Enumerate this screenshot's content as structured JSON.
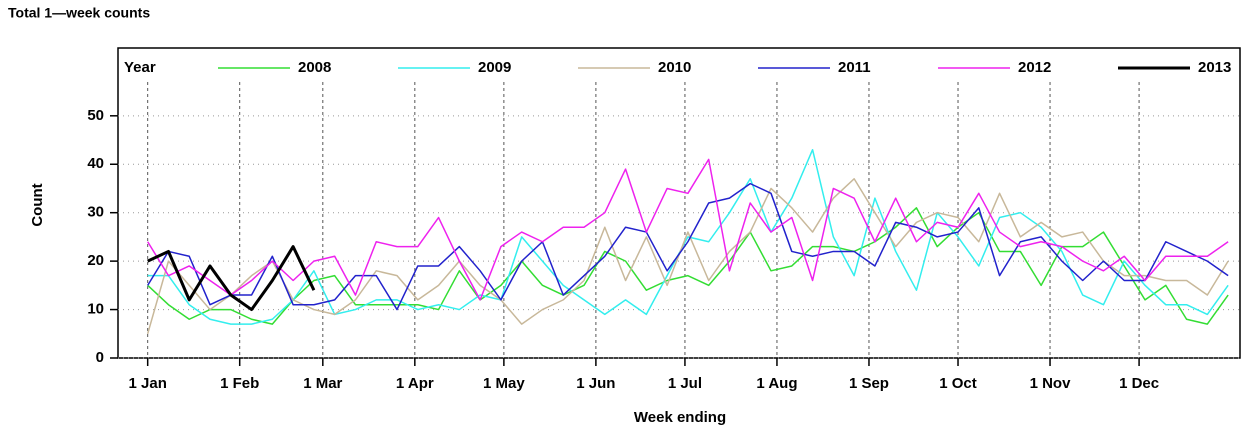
{
  "chart_data": {
    "type": "line",
    "title": "Total 1—week counts",
    "xlabel": "Week ending",
    "ylabel": "Count",
    "legend_title": "Year",
    "legend": "top",
    "grid": true,
    "x": [
      1,
      8,
      15,
      22,
      29,
      36,
      43,
      50,
      57,
      64,
      71,
      78,
      85,
      92,
      99,
      106,
      113,
      120,
      127,
      134,
      141,
      148,
      155,
      162,
      169,
      176,
      183,
      190,
      197,
      204,
      211,
      218,
      225,
      232,
      239,
      246,
      253,
      260,
      267,
      274,
      281,
      288,
      295,
      302,
      309,
      316,
      323,
      330,
      337,
      344,
      351,
      358,
      365
    ],
    "xlim": [
      -9,
      369
    ],
    "xticks": [
      {
        "value": 1,
        "label": "1 Jan"
      },
      {
        "value": 32,
        "label": "1 Feb"
      },
      {
        "value": 60,
        "label": "1 Mar"
      },
      {
        "value": 91,
        "label": "1 Apr"
      },
      {
        "value": 121,
        "label": "1 May"
      },
      {
        "value": 152,
        "label": "1 Jun"
      },
      {
        "value": 182,
        "label": "1 Jul"
      },
      {
        "value": 213,
        "label": "1 Aug"
      },
      {
        "value": 244,
        "label": "1 Sep"
      },
      {
        "value": 274,
        "label": "1 Oct"
      },
      {
        "value": 305,
        "label": "1 Nov"
      },
      {
        "value": 335,
        "label": "1 Dec"
      }
    ],
    "ylim": [
      0,
      64
    ],
    "yticks": [
      0,
      10,
      20,
      30,
      40,
      50
    ],
    "series": [
      {
        "name": "2008",
        "color": "#33dd33",
        "width": 1.5,
        "values": [
          15,
          11,
          8,
          10,
          10,
          8,
          7,
          12,
          16,
          17,
          11,
          11,
          11,
          11,
          10,
          18,
          12,
          15,
          20,
          15,
          13,
          15,
          22,
          20,
          14,
          16,
          17,
          15,
          20,
          26,
          18,
          19,
          23,
          23,
          22,
          24,
          27,
          31,
          23,
          27,
          30,
          22,
          22,
          15,
          23,
          23,
          26,
          19,
          12,
          15,
          8,
          7,
          13
        ]
      },
      {
        "name": "2009",
        "color": "#33eeee",
        "width": 1.5,
        "values": [
          17,
          17,
          11,
          8,
          7,
          7,
          8,
          12,
          18,
          9,
          10,
          12,
          12,
          10,
          11,
          10,
          13,
          12,
          25,
          20,
          15,
          12,
          9,
          12,
          9,
          17,
          25,
          24,
          30,
          37,
          26,
          33,
          43,
          25,
          17,
          33,
          22,
          14,
          30,
          25,
          19,
          29,
          30,
          27,
          22,
          13,
          11,
          20,
          15,
          11,
          11,
          9,
          15
        ]
      },
      {
        "name": "2010",
        "color": "#c8b89a",
        "width": 1.5,
        "values": [
          5,
          20,
          15,
          10,
          13,
          17,
          20,
          12,
          10,
          9,
          12,
          18,
          17,
          12,
          15,
          20,
          15,
          12,
          7,
          10,
          12,
          16,
          27,
          16,
          25,
          15,
          26,
          16,
          22,
          26,
          35,
          31,
          26,
          33,
          37,
          30,
          23,
          28,
          30,
          29,
          24,
          34,
          25,
          28,
          25,
          26,
          20,
          17,
          17,
          16,
          16,
          13,
          20
        ]
      },
      {
        "name": "2011",
        "color": "#2222cc",
        "width": 1.5,
        "values": [
          15,
          22,
          21,
          11,
          13,
          13,
          21,
          11,
          11,
          12,
          17,
          17,
          10,
          19,
          19,
          23,
          18,
          12,
          20,
          24,
          13,
          17,
          21,
          27,
          26,
          18,
          24,
          32,
          33,
          36,
          34,
          22,
          21,
          22,
          22,
          19,
          28,
          27,
          25,
          26,
          31,
          17,
          24,
          25,
          20,
          16,
          20,
          16,
          16,
          24,
          22,
          20,
          17
        ]
      },
      {
        "name": "2012",
        "color": "#ee22ee",
        "width": 1.5,
        "values": [
          24,
          17,
          19,
          16,
          13,
          16,
          20,
          16,
          20,
          21,
          13,
          24,
          23,
          23,
          29,
          20,
          12,
          23,
          26,
          24,
          27,
          27,
          30,
          39,
          26,
          35,
          34,
          41,
          18,
          32,
          26,
          29,
          16,
          35,
          33,
          24,
          33,
          24,
          28,
          27,
          34,
          26,
          23,
          24,
          23,
          20,
          18,
          21,
          16,
          21,
          21,
          21,
          24
        ]
      },
      {
        "name": "2013",
        "color": "#000000",
        "width": 3,
        "values": [
          20,
          22,
          12,
          19,
          13,
          10,
          16,
          23,
          14,
          null,
          null,
          null,
          null,
          null,
          null,
          null,
          null,
          null,
          null,
          null,
          null,
          null,
          null,
          null,
          null,
          null,
          null,
          null,
          null,
          null,
          null,
          null,
          null,
          null,
          null,
          null,
          null,
          null,
          null,
          null,
          null,
          null,
          null,
          null,
          null,
          null,
          null,
          null,
          null,
          null,
          null,
          null,
          null
        ]
      }
    ]
  }
}
